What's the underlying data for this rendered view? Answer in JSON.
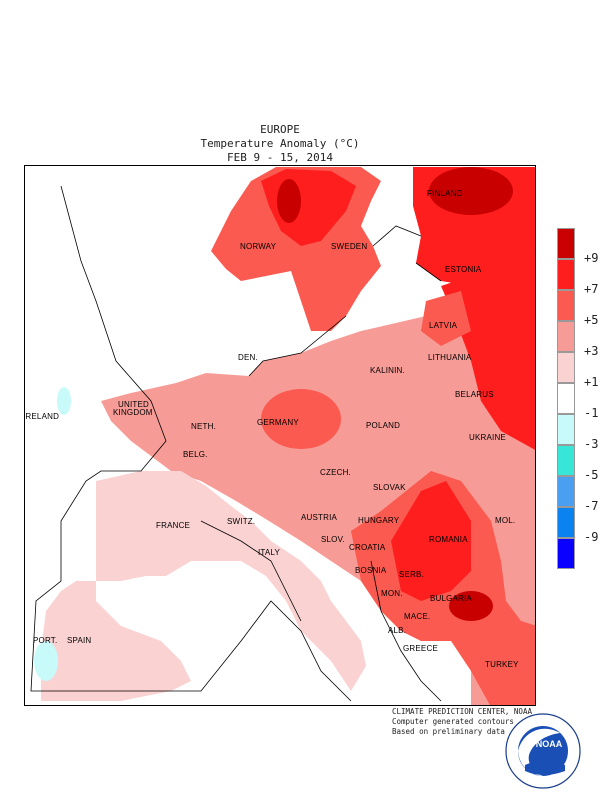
{
  "header": {
    "line1": "EUROPE",
    "line2": "Temperature Anomaly (°C)",
    "line3": "FEB 9 - 15, 2014"
  },
  "map": {
    "countries": [
      {
        "name": "FINLAND"
      },
      {
        "name": "NORWAY"
      },
      {
        "name": "SWEDEN"
      },
      {
        "name": "ESTONIA"
      },
      {
        "name": "LATVIA"
      },
      {
        "name": "DEN."
      },
      {
        "name": "LITHUANIA"
      },
      {
        "name": "KALININ."
      },
      {
        "name": "BELARUS"
      },
      {
        "name": "IRELAND"
      },
      {
        "name": "UNITED"
      },
      {
        "name": "KINGDOM"
      },
      {
        "name": "NETH."
      },
      {
        "name": "GERMANY"
      },
      {
        "name": "POLAND"
      },
      {
        "name": "BELG."
      },
      {
        "name": "UKRAINE"
      },
      {
        "name": "CZECH."
      },
      {
        "name": "SLOVAK"
      },
      {
        "name": "FRANCE"
      },
      {
        "name": "SWITZ."
      },
      {
        "name": "AUSTRIA"
      },
      {
        "name": "HUNGARY"
      },
      {
        "name": "MOL."
      },
      {
        "name": "ROMANIA"
      },
      {
        "name": "SLOV."
      },
      {
        "name": "CROATIA"
      },
      {
        "name": "ITALY"
      },
      {
        "name": "BOSNIA"
      },
      {
        "name": "SERB."
      },
      {
        "name": "MON."
      },
      {
        "name": "BULGARIA"
      },
      {
        "name": "PORT."
      },
      {
        "name": "SPAIN"
      },
      {
        "name": "ALB."
      },
      {
        "name": "MACE."
      },
      {
        "name": "GREECE"
      },
      {
        "name": "TURKEY"
      }
    ]
  },
  "legend": {
    "colors": [
      "#c80000",
      "#ff1e1e",
      "#fa5a50",
      "#f79b96",
      "#fad2d2",
      "#ffffff",
      "#c8fafa",
      "#37e6d7",
      "#4b9ff0",
      "#0a82f0",
      "#0a00ff"
    ],
    "ticks": [
      "+9",
      "+7",
      "+5",
      "+3",
      "+1",
      "-1",
      "-3",
      "-5",
      "-7",
      "-9"
    ]
  },
  "credits": {
    "line1": "CLIMATE PREDICTION CENTER, NOAA",
    "line2": "Computer generated contours",
    "line3": "Based on preliminary data"
  },
  "logo": {
    "text": "NOAA",
    "ring_text": "NATIONAL OCEANIC AND ATMOSPHERIC ADMINISTRATION · U.S. DEPARTMENT OF COMMERCE",
    "icon": "noaa-logo-icon"
  }
}
